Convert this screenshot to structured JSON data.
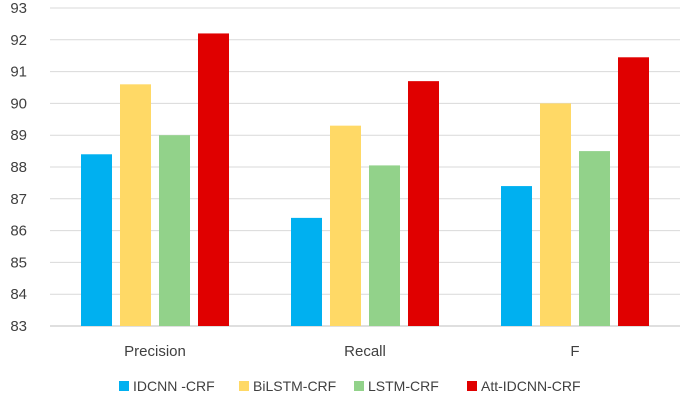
{
  "chart_data": {
    "type": "bar",
    "title": "",
    "xlabel": "",
    "ylabel": "",
    "categories": [
      "Precision",
      "Recall",
      "F"
    ],
    "ylim": [
      83,
      93
    ],
    "yticks": [
      83,
      84,
      85,
      86,
      87,
      88,
      89,
      90,
      91,
      92,
      93
    ],
    "grid": true,
    "legend_position": "bottom",
    "series": [
      {
        "name": "IDCNN -CRF",
        "color": "#00B0F0",
        "values": [
          88.4,
          86.4,
          87.4
        ]
      },
      {
        "name": "BiLSTM-CRF",
        "color": "#FFD966",
        "values": [
          90.6,
          89.3,
          90.0
        ]
      },
      {
        "name": "LSTM-CRF",
        "color": "#92D28A",
        "values": [
          89.0,
          88.05,
          88.5
        ]
      },
      {
        "name": "Att-IDCNN-CRF",
        "color": "#E00000",
        "values": [
          92.2,
          90.7,
          91.45
        ]
      }
    ]
  }
}
